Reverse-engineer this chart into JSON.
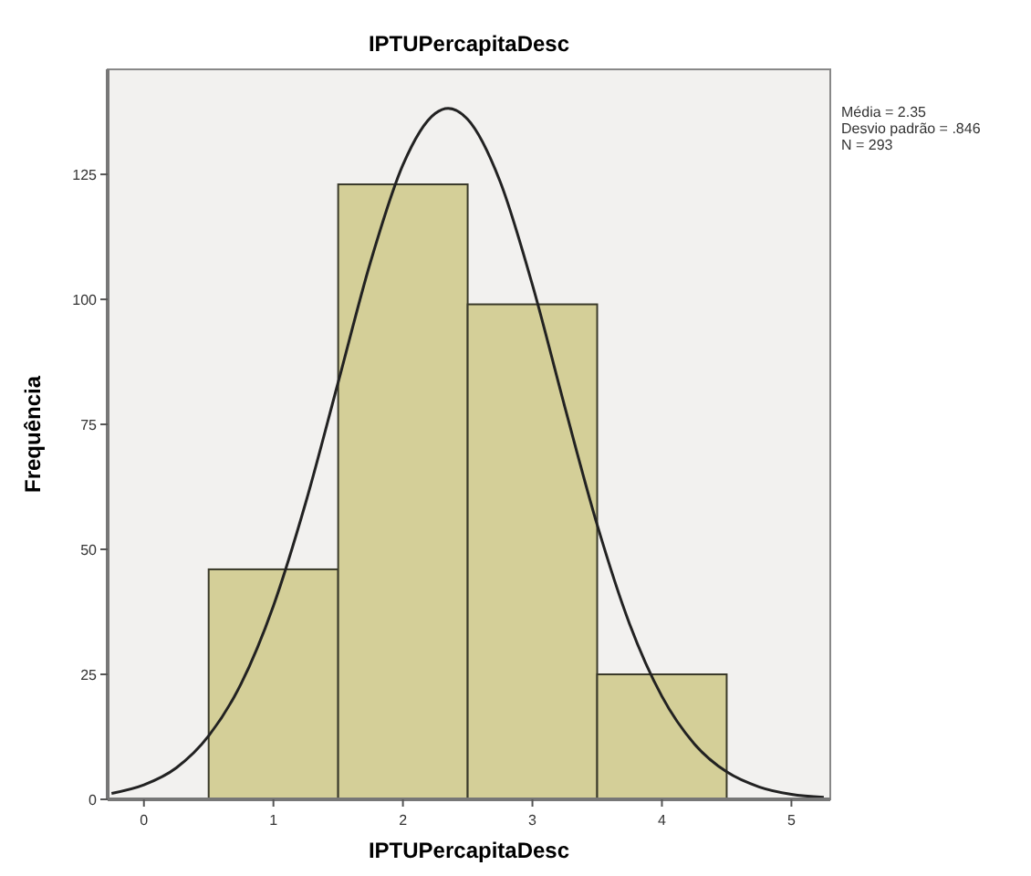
{
  "chart_data": {
    "type": "histogram",
    "title": "IPTUPercapitaDesc",
    "xlabel": "IPTUPercapitaDesc",
    "ylabel": "Frequência",
    "bins": [
      0.5,
      1.5,
      2.5,
      3.5,
      4.5
    ],
    "values": [
      46,
      123,
      99,
      25
    ],
    "color": "#d4cf98",
    "series": [
      {
        "type": "line",
        "color": "#222222",
        "x": [
          -0.25,
          0,
          0.25,
          0.5,
          0.75,
          1,
          1.25,
          1.5,
          1.75,
          2,
          2.25,
          2.35,
          2.5,
          2.75,
          3,
          3.25,
          3.5,
          3.75,
          4,
          4.25,
          4.5,
          4.75,
          5,
          5.25
        ],
        "values": [
          1.2,
          2.9,
          6.3,
          12.7,
          23.1,
          38.7,
          59.4,
          83.4,
          107.5,
          126.9,
          137.2,
          138.2,
          136,
          123.6,
          102.9,
          78.5,
          54.9,
          35.1,
          20.6,
          11.1,
          5.5,
          2.5,
          1,
          0.4
        ]
      }
    ],
    "xlim": [
      -0.28,
      5.3
    ],
    "xticks": [
      0,
      1,
      2,
      3,
      4,
      5
    ],
    "ylim": [
      0,
      146
    ],
    "yticks": [
      0,
      25,
      50,
      75,
      100,
      125
    ],
    "annotations": [
      "Média = 2.35",
      "Desvio padrão = .846",
      "N = 293"
    ]
  }
}
